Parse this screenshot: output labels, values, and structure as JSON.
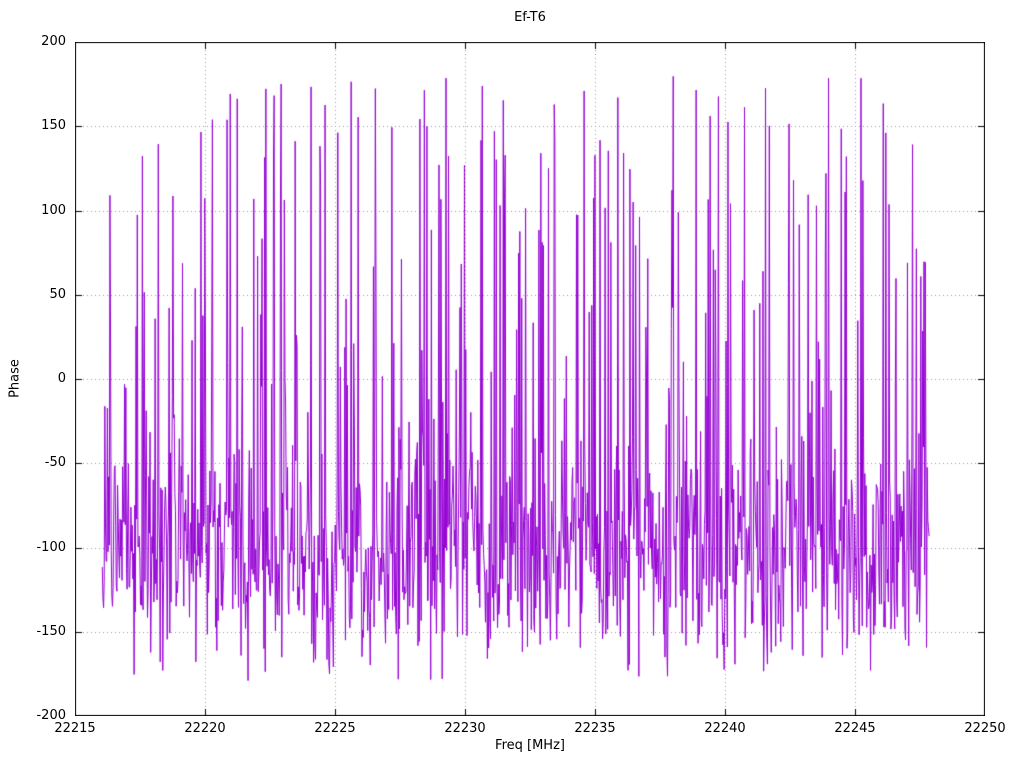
{
  "page": {
    "background": "#ffffff",
    "text_color": "#000000"
  },
  "chart_data": {
    "type": "line",
    "title": "Ef-T6",
    "xlabel": "Freq [MHz]",
    "ylabel": "Phase",
    "xlim": [
      22215,
      22250
    ],
    "ylim": [
      -200,
      200
    ],
    "xticks": [
      22215,
      22220,
      22225,
      22230,
      22235,
      22240,
      22245,
      22250
    ],
    "yticks": [
      -200,
      -150,
      -100,
      -50,
      0,
      50,
      100,
      150,
      200
    ],
    "grid": true,
    "grid_color": "#9a9a9a",
    "border_color": "#000000",
    "line_color": "#9400D3",
    "series": [
      {
        "name": "phase",
        "x_start": 22216.05,
        "x_end": 22247.85,
        "n_points": 1300,
        "generator": {
          "kind": "wrapped-phase-noise",
          "seed": 1337,
          "baseline_mean": -105,
          "baseline_sd": 30,
          "baseline_wander_amp": 12,
          "baseline_wander_period": 90,
          "spike_probability": 0.24,
          "spike_min": -180,
          "spike_max": 180,
          "wrap": 180
        }
      }
    ]
  }
}
